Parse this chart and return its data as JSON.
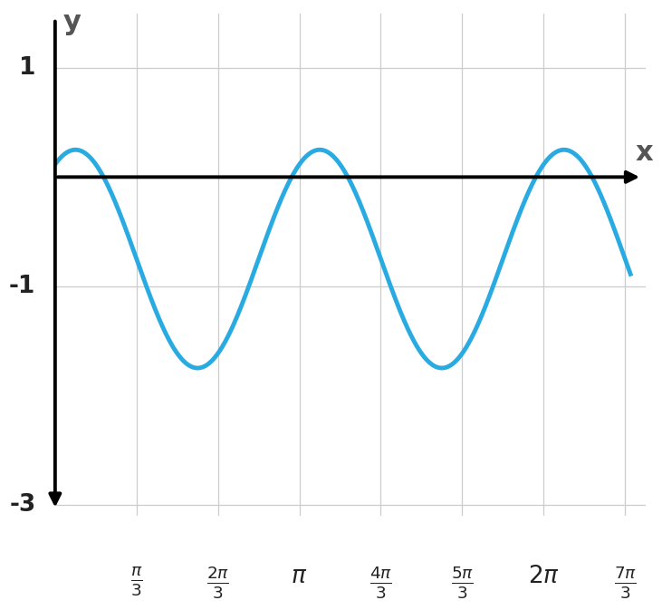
{
  "curve_color": "#29ABE2",
  "curve_linewidth": 3.5,
  "background_color": "white",
  "grid_color": "#CCCCCC",
  "grid_linewidth": 0.9,
  "xlabel": "x",
  "ylabel": "y",
  "axis_label_color": "#555555",
  "axis_label_fontsize": 22,
  "tick_label_color": "#222222",
  "tick_label_fontsize": 19,
  "x_min": 0,
  "x_max": 7.6,
  "y_min": -3.0,
  "y_max": 1.5,
  "x_ticks": [
    1.0472,
    2.0944,
    3.1416,
    4.1888,
    5.236,
    6.2832,
    7.3304
  ],
  "x_tick_labels": [
    "$\\frac{\\pi}{3}$",
    "$\\frac{2\\pi}{3}$",
    "$\\pi$",
    "$\\frac{4\\pi}{3}$",
    "$\\frac{5\\pi}{3}$",
    "$2\\pi$",
    "$\\frac{7\\pi}{3}$"
  ],
  "y_ticks": [
    1,
    -1,
    -3
  ],
  "y_tick_labels": [
    "1",
    "-1",
    "-3"
  ],
  "amplitude": 1.0,
  "omega": 2.0,
  "phase": 0.5235987755982988,
  "vshift": -0.75,
  "curve_x_start": 0,
  "curve_x_end": 7.4
}
